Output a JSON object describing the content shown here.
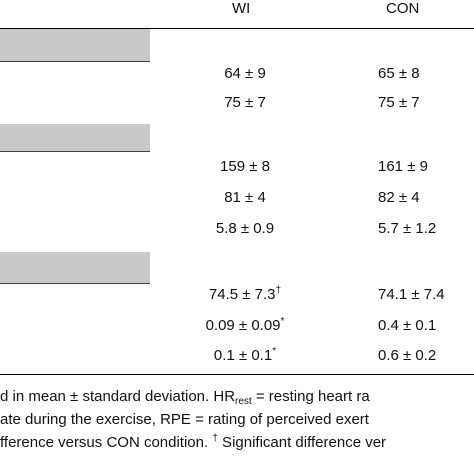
{
  "columns": {
    "wi": "WI",
    "con": "CON"
  },
  "rows": [
    {
      "wi": "64 ± 9",
      "wi_mark": "",
      "con": "65 ± 8"
    },
    {
      "wi": "75 ± 7",
      "wi_mark": "",
      "con": "75 ± 7"
    },
    {
      "wi": "159 ± 8",
      "wi_mark": "",
      "con": "161 ± 9"
    },
    {
      "wi": "81 ± 4",
      "wi_mark": "",
      "con": "82 ± 4"
    },
    {
      "wi": "5.8 ± 0.9",
      "wi_mark": "",
      "con": "5.7 ± 1.2"
    },
    {
      "wi": "74.5 ± 7.3",
      "wi_mark": "†",
      "con": "74.1 ± 7.4"
    },
    {
      "wi": "0.09 ± 0.09",
      "wi_mark": "*",
      "con": "0.4 ± 0.1"
    },
    {
      "wi": "0.1 ± 0.1",
      "wi_mark": "*",
      "con": "0.6 ± 0.2"
    }
  ],
  "footnote": {
    "line1_a": "d in mean ± standard deviation. HR",
    "line1_sub": "rest",
    "line1_b": " = resting heart ra",
    "line2": "ate during the exercise, RPE = rating of perceived exert",
    "line3_a": "fference versus CON condition. ",
    "line3_sup": "†",
    "line3_b": " Significant difference ver"
  }
}
